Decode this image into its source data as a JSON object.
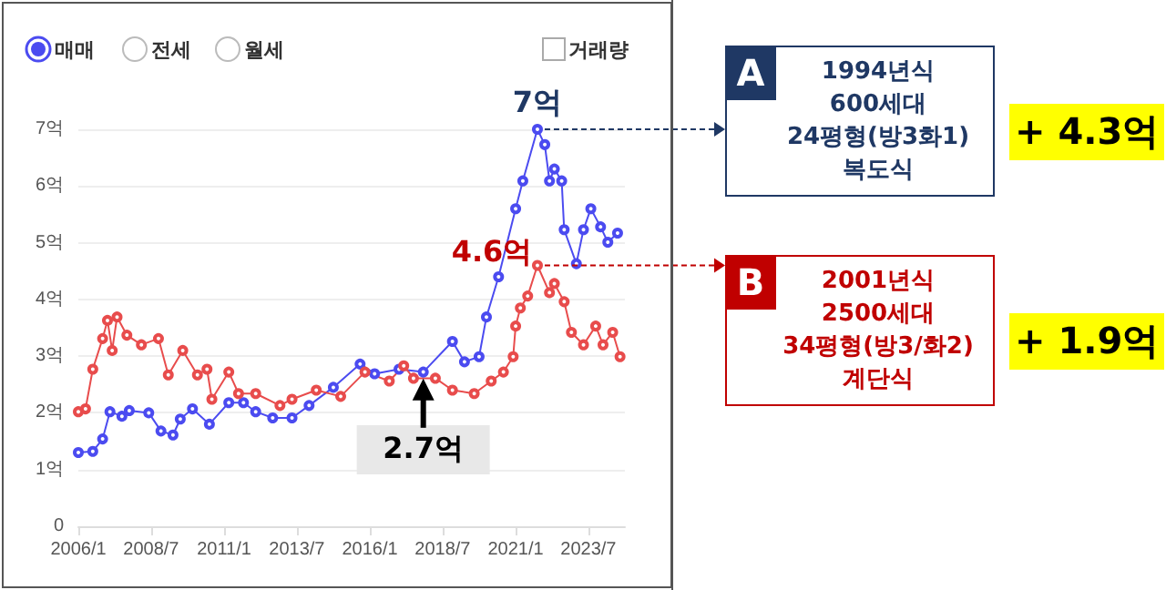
{
  "chart_data": {
    "type": "line",
    "marker": "circle",
    "grid": "y",
    "xlim": [
      "2006-01",
      "2024-10"
    ],
    "xticks": [
      {
        "value": "2006-01",
        "label": "2006/1"
      },
      {
        "value": "2008-07",
        "label": "2008/7"
      },
      {
        "value": "2011-01",
        "label": "2011/1"
      },
      {
        "value": "2013-07",
        "label": "2013/7"
      },
      {
        "value": "2016-01",
        "label": "2016/1"
      },
      {
        "value": "2018-07",
        "label": "2018/7"
      },
      {
        "value": "2021-01",
        "label": "2021/1"
      },
      {
        "value": "2023-07",
        "label": "2023/7"
      }
    ],
    "ylim": [
      0,
      7
    ],
    "yticks": [
      0,
      {
        "value": 1,
        "label": "1억"
      },
      {
        "value": 2,
        "label": "2억"
      },
      {
        "value": 3,
        "label": "3억"
      },
      {
        "value": 4,
        "label": "4억"
      },
      {
        "value": 5,
        "label": "5억"
      },
      {
        "value": 6,
        "label": "6억"
      },
      {
        "value": 7,
        "label": "7억"
      }
    ],
    "series": [
      {
        "name": "A",
        "color": "#4b4bf0",
        "x": [
          "2006-01",
          "2006-07",
          "2006-11",
          "2007-02",
          "2007-07",
          "2007-10",
          "2008-06",
          "2008-11",
          "2009-04",
          "2009-07",
          "2009-12",
          "2010-07",
          "2011-03",
          "2011-09",
          "2012-02",
          "2012-09",
          "2013-05",
          "2013-12",
          "2014-10",
          "2015-09",
          "2016-03",
          "2017-01",
          "2017-11",
          "2018-11",
          "2019-04",
          "2019-10",
          "2020-01",
          "2020-06",
          "2021-01",
          "2021-04",
          "2021-10",
          "2022-01",
          "2022-03",
          "2022-05",
          "2022-08",
          "2022-09",
          "2023-02",
          "2023-05",
          "2023-08",
          "2023-12",
          "2024-03",
          "2024-07"
        ],
        "values": [
          1.3,
          1.32,
          1.54,
          2.02,
          1.94,
          2.04,
          2.0,
          1.68,
          1.61,
          1.89,
          2.07,
          1.8,
          2.18,
          2.18,
          2.02,
          1.91,
          1.91,
          2.13,
          2.45,
          2.86,
          2.69,
          2.77,
          2.72,
          3.26,
          2.9,
          2.99,
          3.69,
          4.4,
          5.6,
          6.09,
          7.0,
          6.73,
          6.09,
          6.3,
          6.09,
          5.23,
          4.63,
          5.23,
          5.6,
          5.28,
          5.01,
          5.17
        ]
      },
      {
        "name": "B",
        "color": "#e84c4c",
        "x": [
          "2006-01",
          "2006-04",
          "2006-07",
          "2006-11",
          "2007-01",
          "2007-03",
          "2007-05",
          "2007-09",
          "2008-03",
          "2008-10",
          "2009-02",
          "2009-08",
          "2010-02",
          "2010-06",
          "2010-08",
          "2011-03",
          "2011-07",
          "2012-02",
          "2012-12",
          "2013-05",
          "2014-03",
          "2015-01",
          "2015-11",
          "2016-09",
          "2017-03",
          "2017-07",
          "2018-04",
          "2018-11",
          "2019-08",
          "2020-03",
          "2020-08",
          "2020-12",
          "2021-01",
          "2021-03",
          "2021-06",
          "2021-10",
          "2022-03",
          "2022-05",
          "2022-09",
          "2022-12",
          "2023-05",
          "2023-10",
          "2024-01",
          "2024-05",
          "2024-08"
        ],
        "values": [
          2.02,
          2.07,
          2.77,
          3.31,
          3.63,
          3.1,
          3.69,
          3.37,
          3.2,
          3.31,
          2.67,
          3.1,
          2.67,
          2.77,
          2.24,
          2.72,
          2.34,
          2.34,
          2.13,
          2.24,
          2.4,
          2.29,
          2.72,
          2.56,
          2.83,
          2.61,
          2.61,
          2.4,
          2.34,
          2.56,
          2.72,
          2.99,
          3.53,
          3.85,
          4.06,
          4.6,
          4.12,
          4.28,
          3.96,
          3.42,
          3.2,
          3.53,
          3.2,
          3.42,
          2.99
        ]
      }
    ],
    "annotations": [
      "매매",
      "전세",
      "월세",
      "거래량",
      {
        "text": "7억",
        "x": "2021-10",
        "y": 7
      },
      {
        "text": "4.6억",
        "x": "2021-10",
        "y": 4.6
      },
      {
        "text": "2.7억",
        "x": "2017-11",
        "y": 2.7
      },
      "1994년식\n600세대\n24평형(방3화1)\n복도식",
      "+ 4.3억",
      "2001년식\n2500세대\n34평형(방3/화2)\n계단식",
      "+ 1.9억"
    ]
  }
}
